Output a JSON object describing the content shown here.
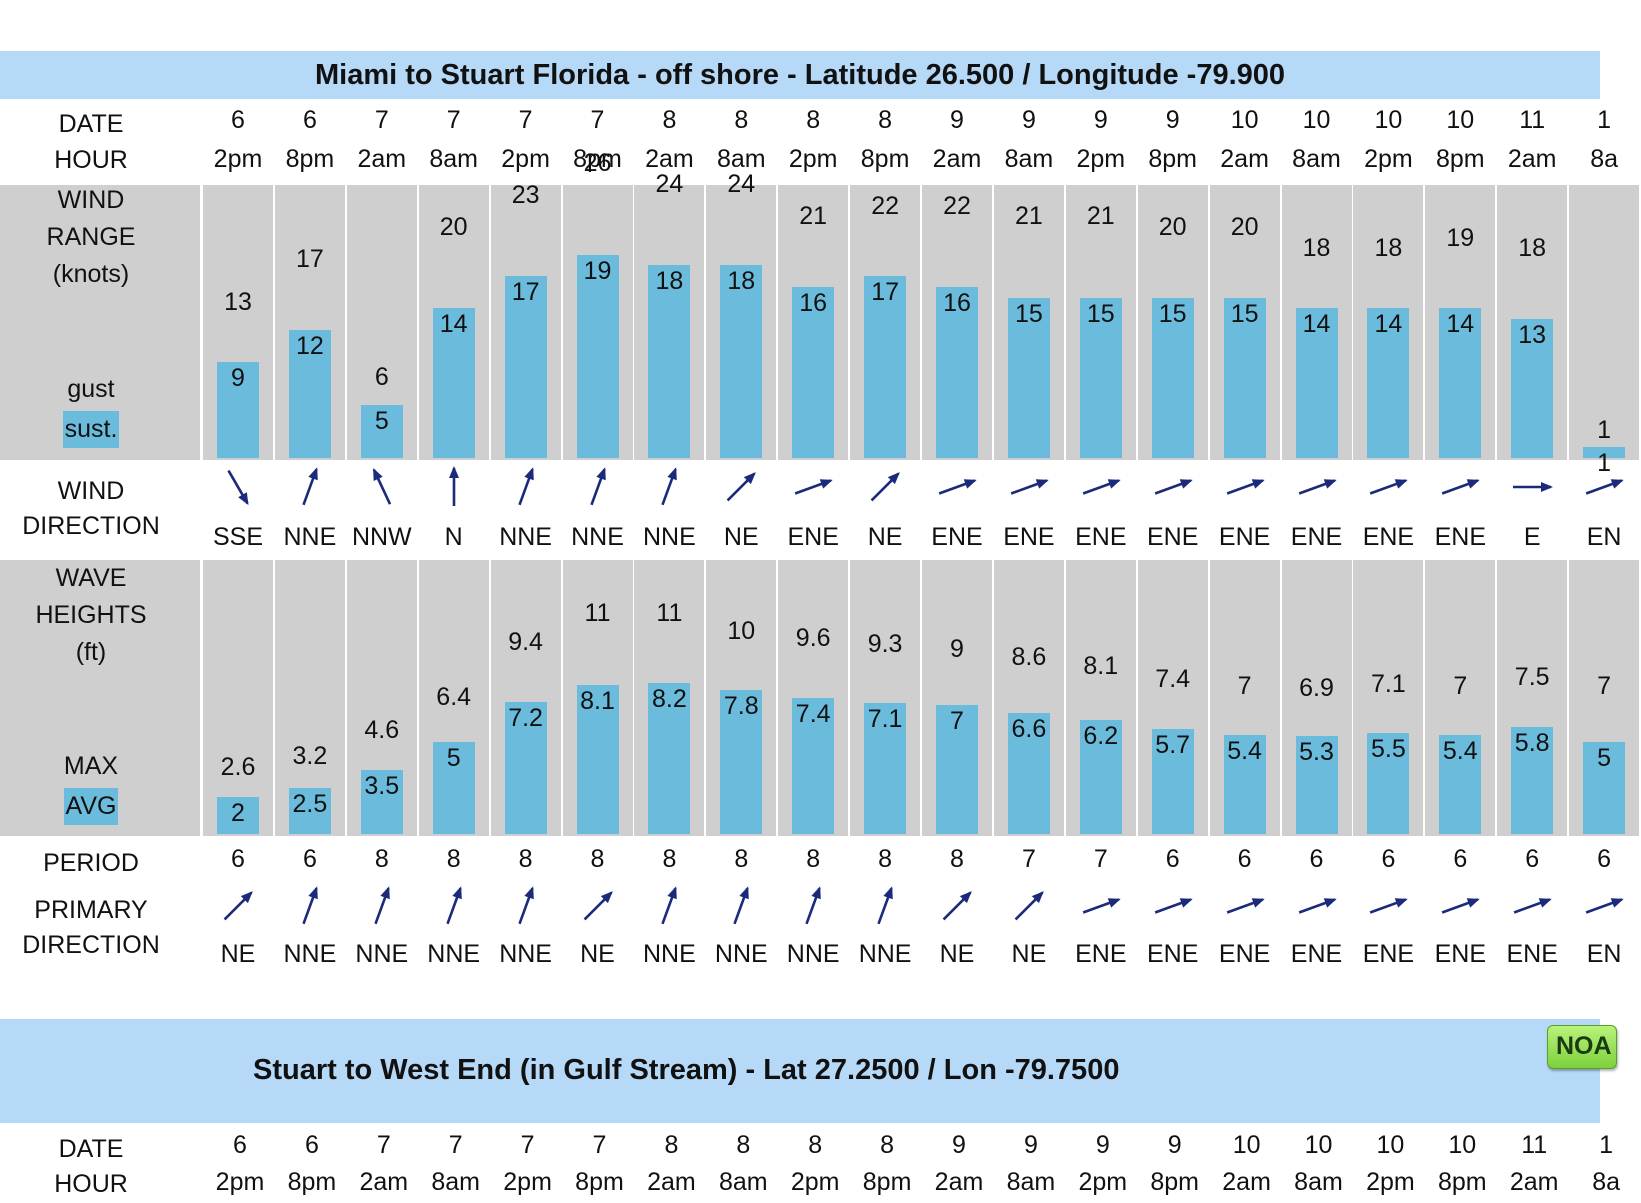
{
  "noaa_badge": "NOA",
  "section1": {
    "title": "Miami to Stuart Florida - off shore - Latitude 26.500 / Longitude -79.900",
    "labels": {
      "date": "DATE",
      "hour": "HOUR",
      "wind_range": [
        "WIND",
        "RANGE",
        "(knots)"
      ],
      "gust": "gust",
      "sust": "sust.",
      "wind_direction": [
        "WIND",
        "DIRECTION"
      ],
      "wave_heights": [
        "WAVE",
        "HEIGHTS",
        "(ft)"
      ],
      "max": "MAX",
      "avg": "AVG",
      "period": "PERIOD",
      "primary_direction": [
        "PRIMARY",
        "DIRECTION"
      ]
    },
    "columns": [
      {
        "date": "6",
        "hour": "2pm",
        "gust": "13",
        "sust": "9",
        "wind_dir": "SSE",
        "wind_arrow_deg": 330,
        "wave_max": "2.6",
        "wave_avg": "2",
        "period": "6",
        "primary_dir": "NE",
        "primary_arrow_deg": 225
      },
      {
        "date": "6",
        "hour": "8pm",
        "gust": "17",
        "sust": "12",
        "wind_dir": "NNE",
        "wind_arrow_deg": 200,
        "wave_max": "3.2",
        "wave_avg": "2.5",
        "period": "6",
        "primary_dir": "NNE",
        "primary_arrow_deg": 200
      },
      {
        "date": "7",
        "hour": "2am",
        "gust": "6",
        "sust": "5",
        "wind_dir": "NNW",
        "wind_arrow_deg": 155,
        "wave_max": "4.6",
        "wave_avg": "3.5",
        "period": "8",
        "primary_dir": "NNE",
        "primary_arrow_deg": 200
      },
      {
        "date": "7",
        "hour": "8am",
        "gust": "20",
        "sust": "14",
        "wind_dir": "N",
        "wind_arrow_deg": 180,
        "wave_max": "6.4",
        "wave_avg": "5",
        "period": "8",
        "primary_dir": "NNE",
        "primary_arrow_deg": 200
      },
      {
        "date": "7",
        "hour": "2pm",
        "gust": "23",
        "sust": "17",
        "wind_dir": "NNE",
        "wind_arrow_deg": 200,
        "wave_max": "9.4",
        "wave_avg": "7.2",
        "period": "8",
        "primary_dir": "NNE",
        "primary_arrow_deg": 200
      },
      {
        "date": "7",
        "hour": "8pm",
        "gust": "26",
        "sust": "19",
        "wind_dir": "NNE",
        "wind_arrow_deg": 200,
        "wave_max": "11",
        "wave_avg": "8.1",
        "period": "8",
        "primary_dir": "NE",
        "primary_arrow_deg": 225
      },
      {
        "date": "8",
        "hour": "2am",
        "gust": "24",
        "sust": "18",
        "wind_dir": "NNE",
        "wind_arrow_deg": 200,
        "wave_max": "11",
        "wave_avg": "8.2",
        "period": "8",
        "primary_dir": "NNE",
        "primary_arrow_deg": 200
      },
      {
        "date": "8",
        "hour": "8am",
        "gust": "24",
        "sust": "18",
        "wind_dir": "NE",
        "wind_arrow_deg": 225,
        "wave_max": "10",
        "wave_avg": "7.8",
        "period": "8",
        "primary_dir": "NNE",
        "primary_arrow_deg": 200
      },
      {
        "date": "8",
        "hour": "2pm",
        "gust": "21",
        "sust": "16",
        "wind_dir": "ENE",
        "wind_arrow_deg": 250,
        "wave_max": "9.6",
        "wave_avg": "7.4",
        "period": "8",
        "primary_dir": "NNE",
        "primary_arrow_deg": 200
      },
      {
        "date": "8",
        "hour": "8pm",
        "gust": "22",
        "sust": "17",
        "wind_dir": "NE",
        "wind_arrow_deg": 225,
        "wave_max": "9.3",
        "wave_avg": "7.1",
        "period": "8",
        "primary_dir": "NNE",
        "primary_arrow_deg": 200
      },
      {
        "date": "9",
        "hour": "2am",
        "gust": "22",
        "sust": "16",
        "wind_dir": "ENE",
        "wind_arrow_deg": 250,
        "wave_max": "9",
        "wave_avg": "7",
        "period": "8",
        "primary_dir": "NE",
        "primary_arrow_deg": 225
      },
      {
        "date": "9",
        "hour": "8am",
        "gust": "21",
        "sust": "15",
        "wind_dir": "ENE",
        "wind_arrow_deg": 250,
        "wave_max": "8.6",
        "wave_avg": "6.6",
        "period": "7",
        "primary_dir": "NE",
        "primary_arrow_deg": 225
      },
      {
        "date": "9",
        "hour": "2pm",
        "gust": "21",
        "sust": "15",
        "wind_dir": "ENE",
        "wind_arrow_deg": 250,
        "wave_max": "8.1",
        "wave_avg": "6.2",
        "period": "7",
        "primary_dir": "ENE",
        "primary_arrow_deg": 250
      },
      {
        "date": "9",
        "hour": "8pm",
        "gust": "20",
        "sust": "15",
        "wind_dir": "ENE",
        "wind_arrow_deg": 250,
        "wave_max": "7.4",
        "wave_avg": "5.7",
        "period": "6",
        "primary_dir": "ENE",
        "primary_arrow_deg": 250
      },
      {
        "date": "10",
        "hour": "2am",
        "gust": "20",
        "sust": "15",
        "wind_dir": "ENE",
        "wind_arrow_deg": 250,
        "wave_max": "7",
        "wave_avg": "5.4",
        "period": "6",
        "primary_dir": "ENE",
        "primary_arrow_deg": 250
      },
      {
        "date": "10",
        "hour": "8am",
        "gust": "18",
        "sust": "14",
        "wind_dir": "ENE",
        "wind_arrow_deg": 250,
        "wave_max": "6.9",
        "wave_avg": "5.3",
        "period": "6",
        "primary_dir": "ENE",
        "primary_arrow_deg": 250
      },
      {
        "date": "10",
        "hour": "2pm",
        "gust": "18",
        "sust": "14",
        "wind_dir": "ENE",
        "wind_arrow_deg": 250,
        "wave_max": "7.1",
        "wave_avg": "5.5",
        "period": "6",
        "primary_dir": "ENE",
        "primary_arrow_deg": 250
      },
      {
        "date": "10",
        "hour": "8pm",
        "gust": "19",
        "sust": "14",
        "wind_dir": "ENE",
        "wind_arrow_deg": 250,
        "wave_max": "7",
        "wave_avg": "5.4",
        "period": "6",
        "primary_dir": "ENE",
        "primary_arrow_deg": 250
      },
      {
        "date": "11",
        "hour": "2am",
        "gust": "18",
        "sust": "13",
        "wind_dir": "E",
        "wind_arrow_deg": 270,
        "wave_max": "7.5",
        "wave_avg": "5.8",
        "period": "6",
        "primary_dir": "ENE",
        "primary_arrow_deg": 250
      },
      {
        "date": "1",
        "hour": "8a",
        "gust": "1",
        "sust": "1",
        "wind_dir": "EN",
        "wind_arrow_deg": 250,
        "wave_max": "7",
        "wave_avg": "5",
        "period": "6",
        "primary_dir": "EN",
        "primary_arrow_deg": 250
      }
    ]
  },
  "section2": {
    "title": "Stuart to West End (in Gulf Stream) - Lat 27.2500 / Lon -79.7500",
    "labels": {
      "date": "DATE",
      "hour": "HOUR"
    },
    "columns": [
      {
        "date": "6",
        "hour": "2pm"
      },
      {
        "date": "6",
        "hour": "8pm"
      },
      {
        "date": "7",
        "hour": "2am"
      },
      {
        "date": "7",
        "hour": "8am"
      },
      {
        "date": "7",
        "hour": "2pm"
      },
      {
        "date": "7",
        "hour": "8pm"
      },
      {
        "date": "8",
        "hour": "2am"
      },
      {
        "date": "8",
        "hour": "8am"
      },
      {
        "date": "8",
        "hour": "2pm"
      },
      {
        "date": "8",
        "hour": "8pm"
      },
      {
        "date": "9",
        "hour": "2am"
      },
      {
        "date": "9",
        "hour": "8am"
      },
      {
        "date": "9",
        "hour": "2pm"
      },
      {
        "date": "9",
        "hour": "8pm"
      },
      {
        "date": "10",
        "hour": "2am"
      },
      {
        "date": "10",
        "hour": "8am"
      },
      {
        "date": "10",
        "hour": "2pm"
      },
      {
        "date": "10",
        "hour": "8pm"
      },
      {
        "date": "11",
        "hour": "2am"
      },
      {
        "date": "1",
        "hour": "8a"
      }
    ]
  }
}
